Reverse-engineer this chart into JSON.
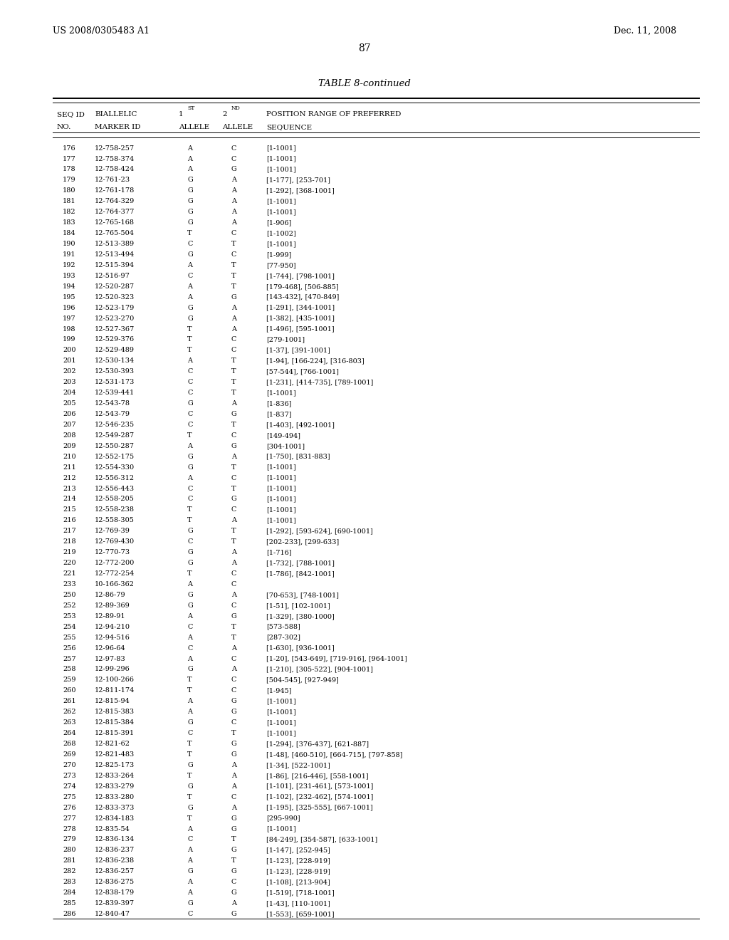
{
  "header_left": "US 2008/0305483 A1",
  "header_right": "Dec. 11, 2008",
  "page_number": "87",
  "table_title": "TABLE 8-continued",
  "rows": [
    [
      "176",
      "12-758-257",
      "A",
      "C",
      "[1-1001]"
    ],
    [
      "177",
      "12-758-374",
      "A",
      "C",
      "[1-1001]"
    ],
    [
      "178",
      "12-758-424",
      "A",
      "G",
      "[1-1001]"
    ],
    [
      "179",
      "12-761-23",
      "G",
      "A",
      "[1-177], [253-701]"
    ],
    [
      "180",
      "12-761-178",
      "G",
      "A",
      "[1-292], [368-1001]"
    ],
    [
      "181",
      "12-764-329",
      "G",
      "A",
      "[1-1001]"
    ],
    [
      "182",
      "12-764-377",
      "G",
      "A",
      "[1-1001]"
    ],
    [
      "183",
      "12-765-168",
      "G",
      "A",
      "[1-906]"
    ],
    [
      "184",
      "12-765-504",
      "T",
      "C",
      "[1-1002]"
    ],
    [
      "190",
      "12-513-389",
      "C",
      "T",
      "[1-1001]"
    ],
    [
      "191",
      "12-513-494",
      "G",
      "C",
      "[1-999]"
    ],
    [
      "192",
      "12-515-394",
      "A",
      "T",
      "[77-950]"
    ],
    [
      "193",
      "12-516-97",
      "C",
      "T",
      "[1-744], [798-1001]"
    ],
    [
      "194",
      "12-520-287",
      "A",
      "T",
      "[179-468], [506-885]"
    ],
    [
      "195",
      "12-520-323",
      "A",
      "G",
      "[143-432], [470-849]"
    ],
    [
      "196",
      "12-523-179",
      "G",
      "A",
      "[1-291], [344-1001]"
    ],
    [
      "197",
      "12-523-270",
      "G",
      "A",
      "[1-382], [435-1001]"
    ],
    [
      "198",
      "12-527-367",
      "T",
      "A",
      "[1-496], [595-1001]"
    ],
    [
      "199",
      "12-529-376",
      "T",
      "C",
      "[279-1001]"
    ],
    [
      "200",
      "12-529-489",
      "T",
      "C",
      "[1-37], [391-1001]"
    ],
    [
      "201",
      "12-530-134",
      "A",
      "T",
      "[1-94], [166-224], [316-803]"
    ],
    [
      "202",
      "12-530-393",
      "C",
      "T",
      "[57-544], [766-1001]"
    ],
    [
      "203",
      "12-531-173",
      "C",
      "T",
      "[1-231], [414-735], [789-1001]"
    ],
    [
      "204",
      "12-539-441",
      "C",
      "T",
      "[1-1001]"
    ],
    [
      "205",
      "12-543-78",
      "G",
      "A",
      "[1-836]"
    ],
    [
      "206",
      "12-543-79",
      "C",
      "G",
      "[1-837]"
    ],
    [
      "207",
      "12-546-235",
      "C",
      "T",
      "[1-403], [492-1001]"
    ],
    [
      "208",
      "12-549-287",
      "T",
      "C",
      "[149-494]"
    ],
    [
      "209",
      "12-550-287",
      "A",
      "G",
      "[304-1001]"
    ],
    [
      "210",
      "12-552-175",
      "G",
      "A",
      "[1-750], [831-883]"
    ],
    [
      "211",
      "12-554-330",
      "G",
      "T",
      "[1-1001]"
    ],
    [
      "212",
      "12-556-312",
      "A",
      "C",
      "[1-1001]"
    ],
    [
      "213",
      "12-556-443",
      "C",
      "T",
      "[1-1001]"
    ],
    [
      "214",
      "12-558-205",
      "C",
      "G",
      "[1-1001]"
    ],
    [
      "215",
      "12-558-238",
      "T",
      "C",
      "[1-1001]"
    ],
    [
      "216",
      "12-558-305",
      "T",
      "A",
      "[1-1001]"
    ],
    [
      "217",
      "12-769-39",
      "G",
      "T",
      "[1-292], [593-624], [690-1001]"
    ],
    [
      "218",
      "12-769-430",
      "C",
      "T",
      "[202-233], [299-633]"
    ],
    [
      "219",
      "12-770-73",
      "G",
      "A",
      "[1-716]"
    ],
    [
      "220",
      "12-772-200",
      "G",
      "A",
      "[1-732], [788-1001]"
    ],
    [
      "221",
      "12-772-254",
      "T",
      "C",
      "[1-786], [842-1001]"
    ],
    [
      "233",
      "10-166-362",
      "A",
      "C",
      ""
    ],
    [
      "250",
      "12-86-79",
      "G",
      "A",
      "[70-653], [748-1001]"
    ],
    [
      "252",
      "12-89-369",
      "G",
      "C",
      "[1-51], [102-1001]"
    ],
    [
      "253",
      "12-89-91",
      "A",
      "G",
      "[1-329], [380-1000]"
    ],
    [
      "254",
      "12-94-210",
      "C",
      "T",
      "[573-588]"
    ],
    [
      "255",
      "12-94-516",
      "A",
      "T",
      "[287-302]"
    ],
    [
      "256",
      "12-96-64",
      "C",
      "A",
      "[1-630], [936-1001]"
    ],
    [
      "257",
      "12-97-83",
      "A",
      "C",
      "[1-20], [543-649], [719-916], [964-1001]"
    ],
    [
      "258",
      "12-99-296",
      "G",
      "A",
      "[1-210], [305-522], [904-1001]"
    ],
    [
      "259",
      "12-100-266",
      "T",
      "C",
      "[504-545], [927-949]"
    ],
    [
      "260",
      "12-811-174",
      "T",
      "C",
      "[1-945]"
    ],
    [
      "261",
      "12-815-94",
      "A",
      "G",
      "[1-1001]"
    ],
    [
      "262",
      "12-815-383",
      "A",
      "G",
      "[1-1001]"
    ],
    [
      "263",
      "12-815-384",
      "G",
      "C",
      "[1-1001]"
    ],
    [
      "264",
      "12-815-391",
      "C",
      "T",
      "[1-1001]"
    ],
    [
      "268",
      "12-821-62",
      "T",
      "G",
      "[1-294], [376-437], [621-887]"
    ],
    [
      "269",
      "12-821-483",
      "T",
      "G",
      "[1-48], [460-510], [664-715], [797-858]"
    ],
    [
      "270",
      "12-825-173",
      "G",
      "A",
      "[1-34], [522-1001]"
    ],
    [
      "273",
      "12-833-264",
      "T",
      "A",
      "[1-86], [216-446], [558-1001]"
    ],
    [
      "274",
      "12-833-279",
      "G",
      "A",
      "[1-101], [231-461], [573-1001]"
    ],
    [
      "275",
      "12-833-280",
      "T",
      "C",
      "[1-102], [232-462], [574-1001]"
    ],
    [
      "276",
      "12-833-373",
      "G",
      "A",
      "[1-195], [325-555], [667-1001]"
    ],
    [
      "277",
      "12-834-183",
      "T",
      "G",
      "[295-990]"
    ],
    [
      "278",
      "12-835-54",
      "A",
      "G",
      "[1-1001]"
    ],
    [
      "279",
      "12-836-134",
      "C",
      "T",
      "[84-249], [354-587], [633-1001]"
    ],
    [
      "280",
      "12-836-237",
      "A",
      "G",
      "[1-147], [252-945]"
    ],
    [
      "281",
      "12-836-238",
      "A",
      "T",
      "[1-123], [228-919]"
    ],
    [
      "282",
      "12-836-257",
      "G",
      "G",
      "[1-123], [228-919]"
    ],
    [
      "283",
      "12-836-275",
      "A",
      "C",
      "[1-108], [213-904]"
    ],
    [
      "284",
      "12-838-179",
      "A",
      "G",
      "[1-519], [718-1001]"
    ],
    [
      "285",
      "12-839-397",
      "G",
      "A",
      "[1-43], [110-1001]"
    ],
    [
      "286",
      "12-840-47",
      "C",
      "G",
      "[1-553], [659-1001]"
    ]
  ],
  "background_color": "#ffffff",
  "text_color": "#000000",
  "data_font_size": 7.0,
  "header_font_size": 9.0,
  "col_header_font_size": 7.5,
  "table_title_font_size": 9.5
}
